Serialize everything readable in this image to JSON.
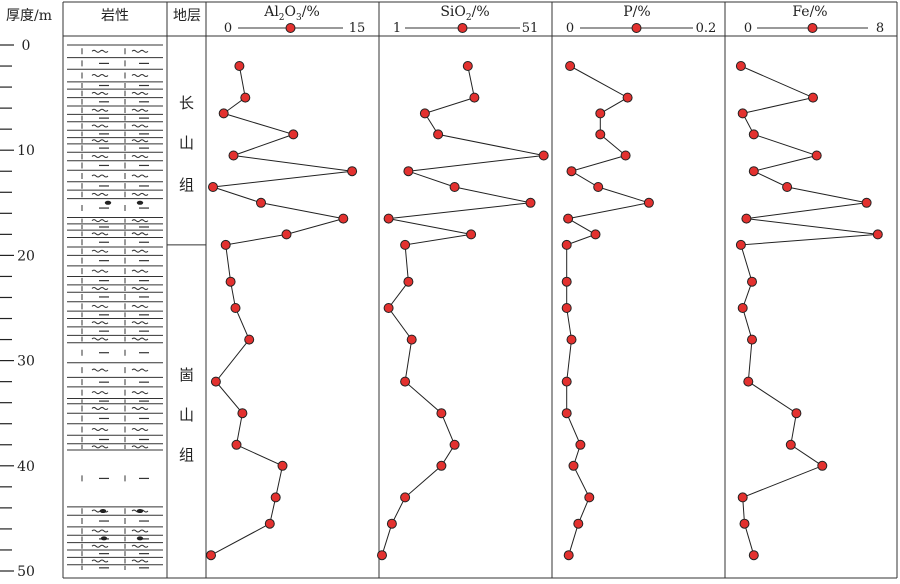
{
  "chart_data": {
    "type": "line",
    "headers": {
      "depth": "厚度/m",
      "lithology": "岩性",
      "formation": "地层"
    },
    "depth_axis": {
      "range": [
        0,
        50
      ],
      "tick_labels": [
        "0",
        "10",
        "20",
        "30",
        "40",
        "50"
      ]
    },
    "formations": [
      {
        "chars": [
          "长",
          "山",
          "组"
        ],
        "range": [
          0,
          19
        ]
      },
      {
        "chars": [
          "崮",
          "山",
          "组"
        ],
        "range": [
          19,
          50
        ]
      }
    ],
    "depths": [
      2.0,
      5.0,
      6.5,
      8.5,
      10.5,
      12.0,
      13.5,
      15.0,
      16.5,
      18.0,
      19.0,
      22.5,
      25.0,
      28.0,
      32.0,
      35.0,
      38.0,
      40.0,
      43.0,
      45.5,
      48.5
    ],
    "series": [
      {
        "name": "Al2O3/%",
        "label_main": "Al",
        "label_sub1": "2",
        "label_mid": "O",
        "label_sub2": "3",
        "label_tail": "/%",
        "xlim": [
          0,
          15
        ],
        "tick_min": "0",
        "tick_max": "15",
        "values": [
          2.9,
          3.5,
          1.3,
          8.4,
          2.3,
          14.4,
          0.2,
          5.1,
          13.5,
          7.7,
          1.5,
          2.0,
          2.5,
          3.9,
          0.5,
          3.2,
          2.6,
          7.3,
          6.6,
          6.0,
          0.0
        ]
      },
      {
        "name": "SiO2/%",
        "label_main": "SiO",
        "label_sub1": "2",
        "label_tail": "/%",
        "xlim": [
          1,
          51
        ],
        "tick_min": "1",
        "tick_max": "51",
        "values": [
          27.0,
          29.0,
          14.0,
          18.0,
          50.0,
          9.0,
          23.0,
          46.0,
          3.0,
          28.0,
          8.0,
          9.0,
          3.0,
          10.0,
          8.0,
          19.0,
          23.0,
          19.0,
          8.0,
          4.0,
          1.0
        ]
      },
      {
        "name": "P/%",
        "label_main": "P",
        "label_tail": "/%",
        "xlim": [
          0,
          0.2
        ],
        "tick_min": "0",
        "tick_max": "0.2",
        "values": [
          0.006,
          0.09,
          0.05,
          0.05,
          0.087,
          0.008,
          0.047,
          0.121,
          0.003,
          0.043,
          0.001,
          0.001,
          0.001,
          0.008,
          0.001,
          0.001,
          0.021,
          0.011,
          0.034,
          0.018,
          0.004
        ]
      },
      {
        "name": "Fe/%",
        "label_main": "Fe",
        "label_tail": "/%",
        "xlim": [
          0,
          8
        ],
        "tick_min": "0",
        "tick_max": "8",
        "values": [
          0.1,
          4.0,
          0.2,
          0.8,
          4.2,
          0.8,
          2.6,
          6.9,
          0.4,
          7.5,
          0.1,
          0.7,
          0.2,
          0.7,
          0.5,
          3.1,
          2.8,
          4.5,
          0.2,
          0.3,
          0.8
        ]
      }
    ]
  }
}
